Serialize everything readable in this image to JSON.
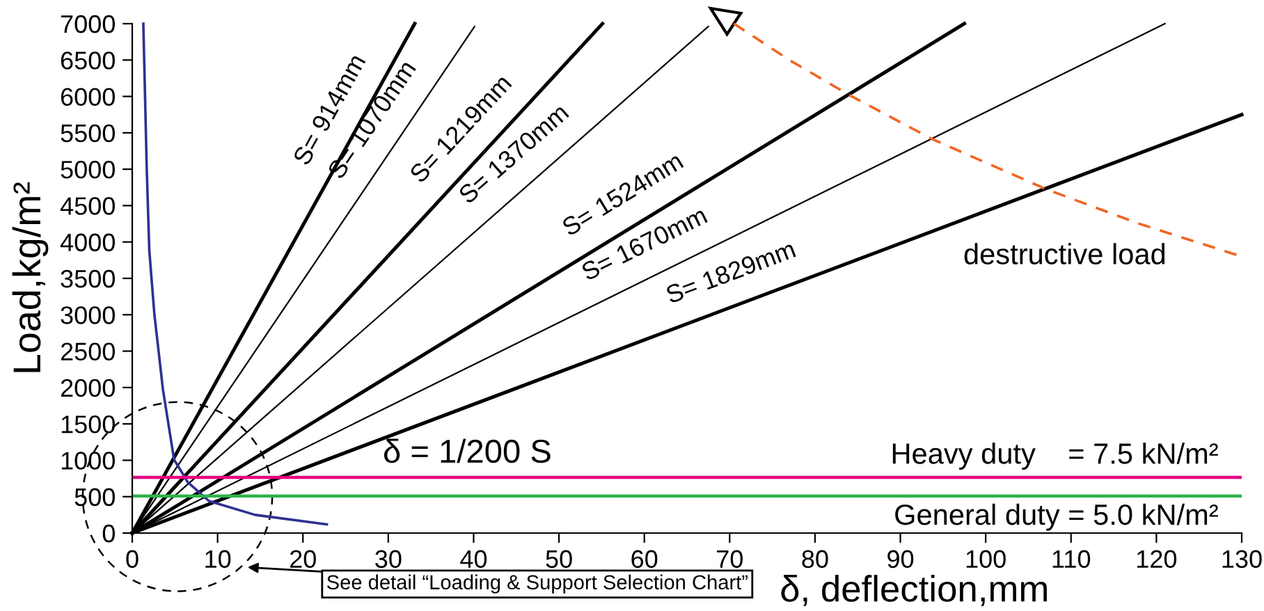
{
  "chart_data": {
    "type": "line",
    "xlabel": "δ, deflection,mm",
    "ylabel": "Load,kg/m²",
    "xlim": [
      0,
      130
    ],
    "xticks": [
      0,
      10,
      20,
      30,
      40,
      50,
      60,
      70,
      80,
      90,
      100,
      110,
      120,
      130
    ],
    "ylim": [
      0,
      7000
    ],
    "yticks": [
      0,
      500,
      1000,
      1500,
      2000,
      2500,
      3000,
      3500,
      4000,
      4500,
      5000,
      5500,
      6000,
      6500,
      7000
    ],
    "grid": false,
    "legend": false,
    "marker": "none",
    "series": [
      {
        "name": "S= 914mm",
        "color": "#000000",
        "x": [
          0,
          33.1
        ],
        "values": [
          0,
          7000
        ]
      },
      {
        "name": "S= 1070mm",
        "color": "#000000",
        "x": [
          0,
          40.1
        ],
        "values": [
          0,
          6960
        ]
      },
      {
        "name": "S= 1219mm",
        "color": "#000000",
        "x": [
          0,
          55.1
        ],
        "values": [
          0,
          7000
        ]
      },
      {
        "name": "S= 1370mm",
        "color": "#000000",
        "x": [
          0,
          67.5
        ],
        "values": [
          0,
          6960
        ]
      },
      {
        "name": "S= 1524mm",
        "color": "#000000",
        "x": [
          0,
          97.5
        ],
        "values": [
          0,
          7000
        ]
      },
      {
        "name": "S= 1670mm",
        "color": "#000000",
        "x": [
          0,
          121
        ],
        "values": [
          0,
          7000
        ]
      },
      {
        "name": "S= 1829mm",
        "color": "#000000",
        "x": [
          0,
          130
        ],
        "values": [
          0,
          5750
        ]
      },
      {
        "color": "#2e3192",
        "x": [
          1.3,
          1.5,
          1.7,
          2.0,
          2.6,
          3.6,
          4.9,
          6.5,
          9.0,
          14.4,
          22.8
        ],
        "values": [
          7000,
          6000,
          5000,
          3880,
          3000,
          1970,
          1010,
          700,
          440,
          250,
          120
        ]
      },
      {
        "name": "destructive load",
        "color": "#f26522",
        "line_style": "dashed",
        "x": [
          70.5,
          77,
          84,
          93.8,
          107.2,
          118,
          130
        ],
        "values": [
          7000,
          6500,
          6020,
          5410,
          4720,
          4250,
          3800
        ]
      }
    ],
    "ref_lines": [
      {
        "axis": "y",
        "value": 765,
        "color": "#e6007e"
      },
      {
        "axis": "y",
        "value": 510,
        "color": "#2db34a"
      }
    ],
    "annotations": [
      "δ = 1/200 S",
      "See detail “Loading & Support Selection Chart”",
      "Heavy duty    = 7.5 kN/m²",
      "General duty = 5.0 kN/m²"
    ]
  }
}
